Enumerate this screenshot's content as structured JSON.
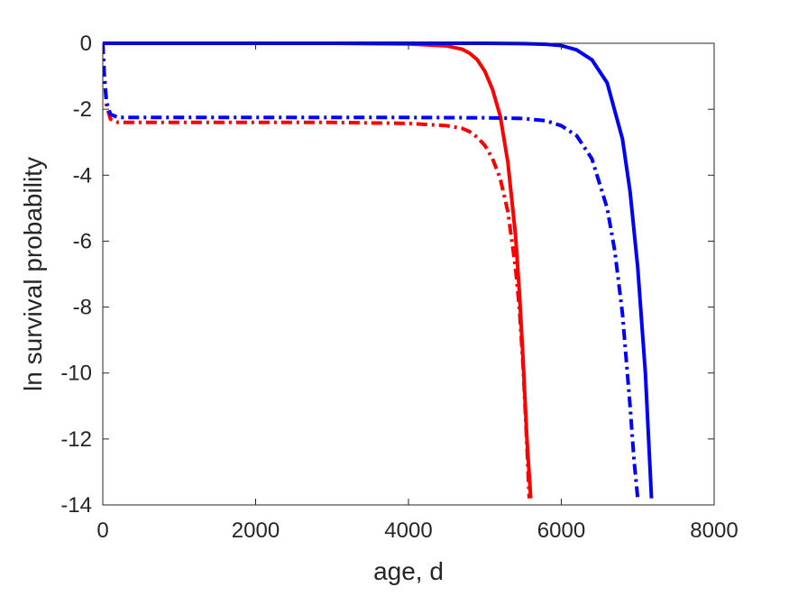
{
  "chart_data": {
    "type": "line",
    "title": "",
    "xlabel": "age, d",
    "ylabel": "ln survival probability",
    "xlim": [
      0,
      8000
    ],
    "ylim": [
      -14,
      0
    ],
    "xticks": [
      0,
      2000,
      4000,
      6000,
      8000
    ],
    "yticks": [
      0,
      -2,
      -4,
      -6,
      -8,
      -10,
      -12,
      -14
    ],
    "xtick_labels": [
      "0",
      "2000",
      "4000",
      "6000",
      "8000"
    ],
    "ytick_labels": [
      "0",
      "-2",
      "-4",
      "-6",
      "-8",
      "-10",
      "-12",
      "-14"
    ],
    "grid": false,
    "legend": null,
    "series": [
      {
        "color": "#ff0000",
        "style": "solid",
        "x": [
          0,
          1000,
          2000,
          3000,
          4000,
          4500,
          4700,
          4800,
          4900,
          5000,
          5100,
          5200,
          5300,
          5400,
          5450,
          5500,
          5550,
          5600
        ],
        "y": [
          0,
          0,
          0,
          0,
          -0.02,
          -0.08,
          -0.18,
          -0.3,
          -0.5,
          -0.85,
          -1.4,
          -2.2,
          -3.6,
          -5.8,
          -7.5,
          -9.6,
          -12.0,
          -13.8
        ]
      },
      {
        "color": "#ff0000",
        "style": "dashdot",
        "x": [
          0,
          20,
          50,
          100,
          200,
          1000,
          2000,
          3000,
          4000,
          4500,
          4700,
          4800,
          4900,
          5000,
          5100,
          5200,
          5300,
          5400,
          5450,
          5500,
          5550,
          5580
        ],
        "y": [
          0,
          -1.0,
          -1.9,
          -2.3,
          -2.4,
          -2.4,
          -2.4,
          -2.4,
          -2.43,
          -2.5,
          -2.58,
          -2.68,
          -2.85,
          -3.1,
          -3.5,
          -4.1,
          -5.1,
          -6.8,
          -8.0,
          -9.8,
          -12.2,
          -13.8
        ]
      },
      {
        "color": "#0000ff",
        "style": "solid",
        "x": [
          0,
          1000,
          2000,
          3000,
          4000,
          5000,
          5500,
          5800,
          6000,
          6200,
          6400,
          6600,
          6800,
          6900,
          7000,
          7100,
          7180
        ],
        "y": [
          0,
          0,
          0,
          0,
          0,
          0,
          -0.01,
          -0.03,
          -0.07,
          -0.2,
          -0.5,
          -1.2,
          -2.9,
          -4.5,
          -6.8,
          -10.0,
          -13.8
        ]
      },
      {
        "color": "#0000ff",
        "style": "dashdot",
        "x": [
          0,
          20,
          50,
          100,
          200,
          1000,
          2000,
          3000,
          4000,
          5000,
          5500,
          5800,
          6000,
          6200,
          6400,
          6600,
          6700,
          6800,
          6900,
          6950,
          7000
        ],
        "y": [
          0,
          -1.0,
          -1.8,
          -2.15,
          -2.25,
          -2.25,
          -2.25,
          -2.25,
          -2.25,
          -2.26,
          -2.28,
          -2.35,
          -2.5,
          -2.8,
          -3.5,
          -5.0,
          -6.3,
          -8.2,
          -11.0,
          -12.6,
          -13.8
        ]
      }
    ]
  }
}
